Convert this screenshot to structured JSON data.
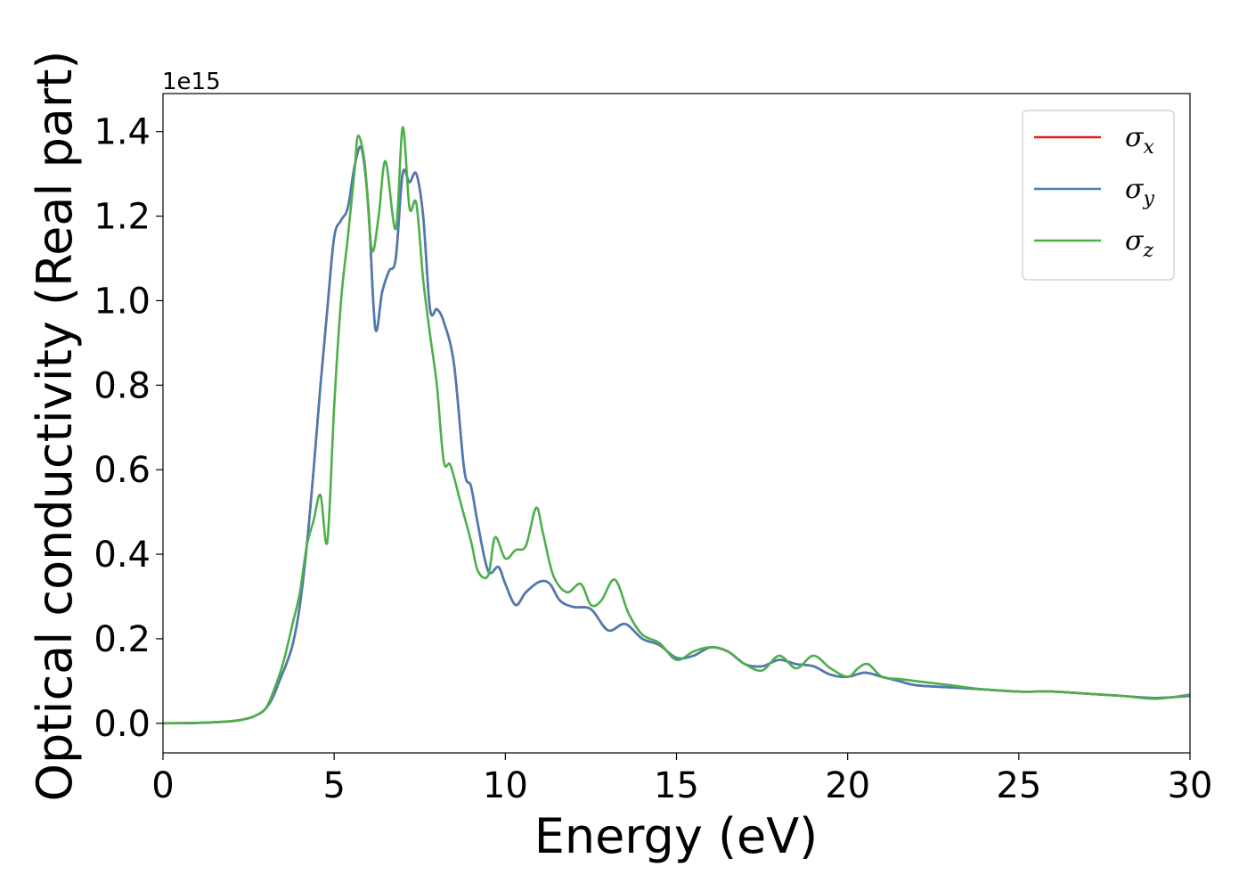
{
  "chart_data": {
    "type": "line",
    "xlabel": "Energy (eV)",
    "ylabel": "Optical conductivity (Real part)",
    "y_offset_label": "1e15",
    "xlim": [
      0,
      30
    ],
    "ylim": [
      -0.07,
      1.49
    ],
    "x_ticks": [
      0,
      5,
      10,
      15,
      20,
      25,
      30
    ],
    "y_ticks": [
      0.0,
      0.2,
      0.4,
      0.6,
      0.8,
      1.0,
      1.2,
      1.4
    ],
    "grid": false,
    "legend_position": "top-right",
    "series": [
      {
        "name": "x",
        "color": "#e41a1c",
        "x": [
          0,
          1,
          2,
          2.5,
          2.8,
          3.0,
          3.2,
          3.4,
          3.6,
          3.8,
          4.0,
          4.2,
          4.4,
          4.6,
          4.8,
          5.0,
          5.2,
          5.4,
          5.6,
          5.8,
          6.0,
          6.2,
          6.4,
          6.6,
          6.8,
          7.0,
          7.2,
          7.4,
          7.6,
          7.8,
          8.0,
          8.2,
          8.5,
          8.8,
          9.0,
          9.2,
          9.5,
          9.8,
          10.0,
          10.3,
          10.6,
          11.0,
          11.3,
          11.6,
          12.0,
          12.5,
          13.0,
          13.5,
          14.0,
          14.5,
          15.0,
          15.5,
          16.0,
          16.5,
          17.0,
          17.5,
          18.0,
          18.5,
          19.0,
          19.5,
          20.0,
          20.5,
          21.0,
          21.5,
          22.0,
          23.0,
          24.0,
          25.0,
          26.0,
          27.0,
          28.0,
          29.0,
          30.0
        ],
        "values": [
          0.0,
          0.001,
          0.005,
          0.012,
          0.022,
          0.035,
          0.06,
          0.1,
          0.14,
          0.19,
          0.28,
          0.42,
          0.6,
          0.8,
          0.98,
          1.15,
          1.19,
          1.22,
          1.32,
          1.36,
          1.22,
          0.935,
          1.02,
          1.07,
          1.1,
          1.3,
          1.28,
          1.3,
          1.2,
          0.98,
          0.98,
          0.95,
          0.85,
          0.6,
          0.56,
          0.47,
          0.36,
          0.37,
          0.33,
          0.28,
          0.31,
          0.335,
          0.33,
          0.29,
          0.275,
          0.27,
          0.22,
          0.235,
          0.2,
          0.185,
          0.155,
          0.16,
          0.18,
          0.17,
          0.14,
          0.135,
          0.15,
          0.14,
          0.135,
          0.115,
          0.11,
          0.12,
          0.11,
          0.1,
          0.09,
          0.085,
          0.08,
          0.075,
          0.075,
          0.07,
          0.065,
          0.06,
          0.065
        ]
      },
      {
        "name": "y",
        "color": "#4a7bb5",
        "x": [
          0,
          1,
          2,
          2.5,
          2.8,
          3.0,
          3.2,
          3.4,
          3.6,
          3.8,
          4.0,
          4.2,
          4.4,
          4.6,
          4.8,
          5.0,
          5.2,
          5.4,
          5.6,
          5.8,
          6.0,
          6.2,
          6.4,
          6.6,
          6.8,
          7.0,
          7.2,
          7.4,
          7.6,
          7.8,
          8.0,
          8.2,
          8.5,
          8.8,
          9.0,
          9.2,
          9.5,
          9.8,
          10.0,
          10.3,
          10.6,
          11.0,
          11.3,
          11.6,
          12.0,
          12.5,
          13.0,
          13.5,
          14.0,
          14.5,
          15.0,
          15.5,
          16.0,
          16.5,
          17.0,
          17.5,
          18.0,
          18.5,
          19.0,
          19.5,
          20.0,
          20.5,
          21.0,
          21.5,
          22.0,
          23.0,
          24.0,
          25.0,
          26.0,
          27.0,
          28.0,
          29.0,
          30.0
        ],
        "values": [
          0.0,
          0.001,
          0.005,
          0.012,
          0.022,
          0.035,
          0.06,
          0.1,
          0.14,
          0.19,
          0.28,
          0.42,
          0.6,
          0.8,
          0.98,
          1.15,
          1.19,
          1.22,
          1.32,
          1.36,
          1.22,
          0.935,
          1.02,
          1.07,
          1.1,
          1.3,
          1.28,
          1.3,
          1.2,
          0.98,
          0.98,
          0.95,
          0.85,
          0.6,
          0.56,
          0.47,
          0.36,
          0.37,
          0.33,
          0.28,
          0.31,
          0.335,
          0.33,
          0.29,
          0.275,
          0.27,
          0.22,
          0.235,
          0.2,
          0.185,
          0.155,
          0.16,
          0.18,
          0.17,
          0.14,
          0.135,
          0.15,
          0.14,
          0.135,
          0.115,
          0.11,
          0.12,
          0.11,
          0.1,
          0.09,
          0.085,
          0.08,
          0.075,
          0.075,
          0.07,
          0.065,
          0.06,
          0.065
        ]
      },
      {
        "name": "z",
        "color": "#4daf4a",
        "x": [
          0,
          1,
          2,
          2.5,
          2.8,
          3.0,
          3.2,
          3.5,
          3.8,
          4.0,
          4.2,
          4.4,
          4.6,
          4.8,
          5.0,
          5.2,
          5.4,
          5.6,
          5.7,
          5.9,
          6.1,
          6.3,
          6.5,
          6.8,
          7.0,
          7.2,
          7.4,
          7.6,
          7.8,
          8.0,
          8.2,
          8.4,
          8.7,
          9.0,
          9.2,
          9.5,
          9.7,
          10.0,
          10.3,
          10.6,
          10.9,
          11.1,
          11.4,
          11.8,
          12.2,
          12.5,
          12.8,
          13.2,
          13.6,
          14.0,
          14.5,
          15.0,
          15.5,
          16.0,
          16.5,
          17.0,
          17.5,
          18.0,
          18.5,
          19.0,
          19.5,
          20.0,
          20.3,
          20.6,
          21.0,
          21.5,
          22.0,
          23.0,
          24.0,
          25.0,
          26.0,
          27.0,
          28.0,
          29.0,
          30.0
        ],
        "values": [
          0.0,
          0.001,
          0.005,
          0.012,
          0.022,
          0.035,
          0.07,
          0.14,
          0.24,
          0.31,
          0.42,
          0.48,
          0.54,
          0.43,
          0.75,
          1.0,
          1.15,
          1.31,
          1.39,
          1.32,
          1.12,
          1.2,
          1.33,
          1.17,
          1.41,
          1.22,
          1.23,
          1.05,
          0.92,
          0.8,
          0.62,
          0.61,
          0.52,
          0.43,
          0.36,
          0.35,
          0.44,
          0.39,
          0.41,
          0.42,
          0.51,
          0.45,
          0.35,
          0.31,
          0.33,
          0.28,
          0.29,
          0.34,
          0.26,
          0.21,
          0.19,
          0.15,
          0.17,
          0.18,
          0.17,
          0.14,
          0.125,
          0.16,
          0.13,
          0.16,
          0.13,
          0.11,
          0.13,
          0.14,
          0.11,
          0.105,
          0.1,
          0.09,
          0.08,
          0.075,
          0.075,
          0.07,
          0.065,
          0.058,
          0.068
        ]
      }
    ]
  }
}
